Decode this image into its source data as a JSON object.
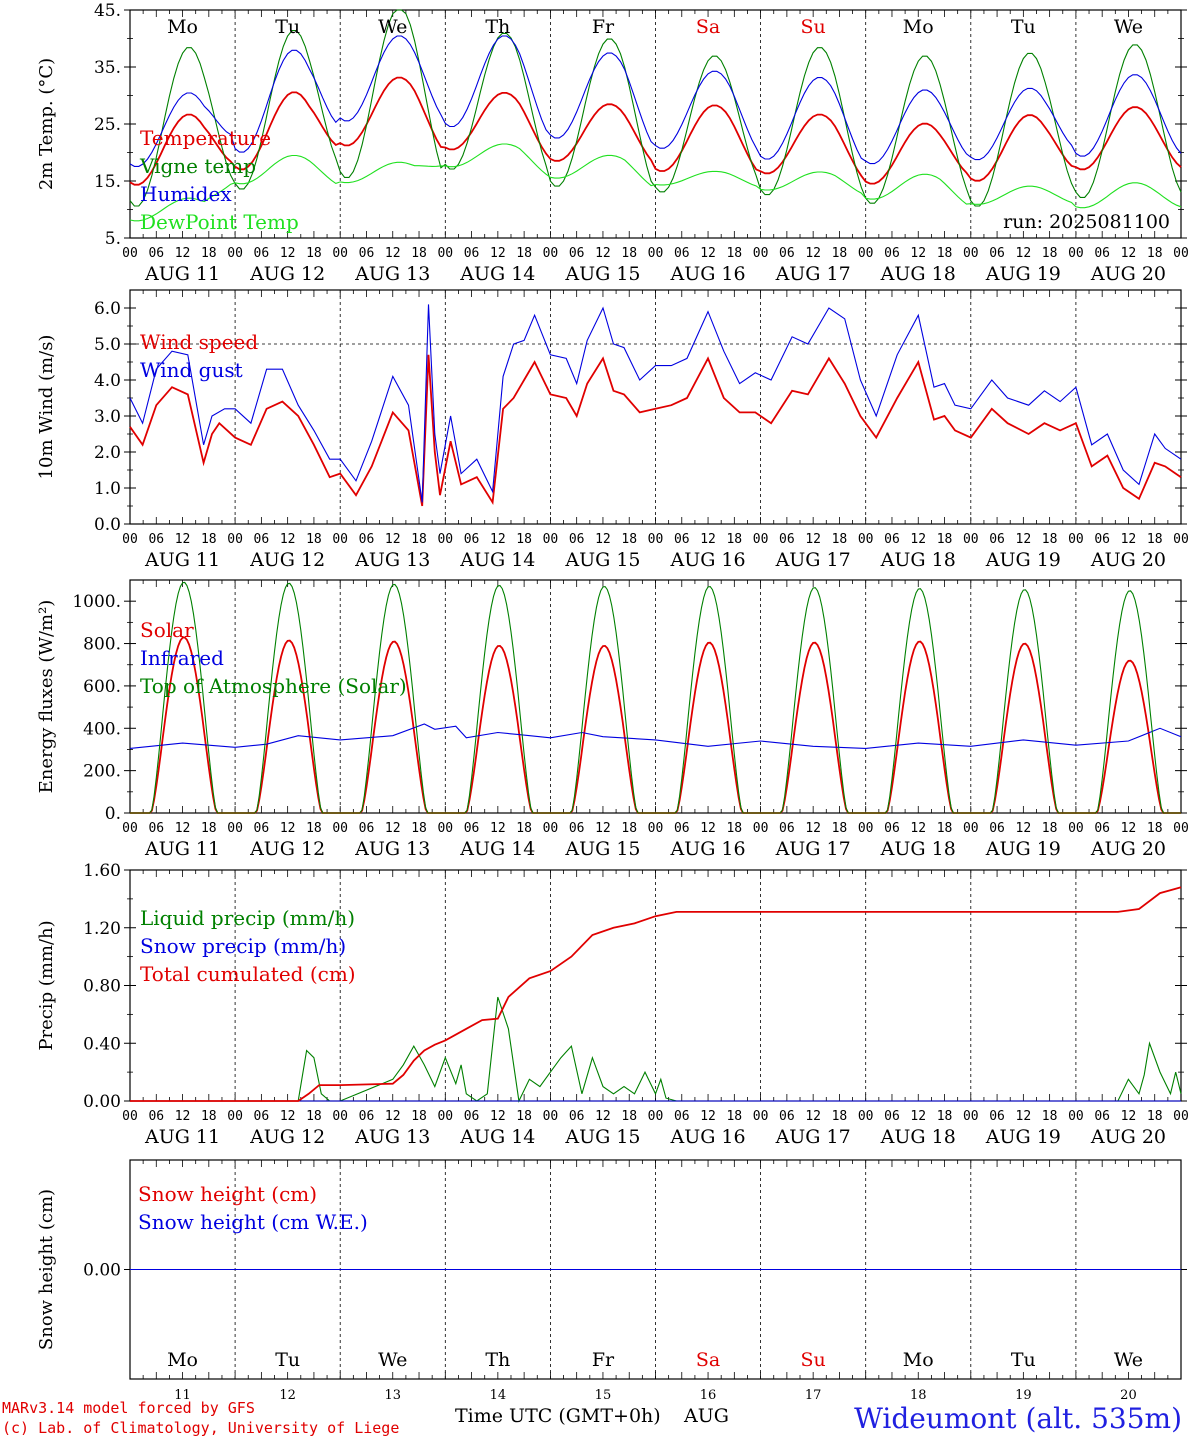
{
  "days": [
    {
      "dow": "Mo",
      "date": "AUG 11",
      "num": "11",
      "weekend": false
    },
    {
      "dow": "Tu",
      "date": "AUG 12",
      "num": "12",
      "weekend": false
    },
    {
      "dow": "We",
      "date": "AUG 13",
      "num": "13",
      "weekend": false
    },
    {
      "dow": "Th",
      "date": "AUG 14",
      "num": "14",
      "weekend": false
    },
    {
      "dow": "Fr",
      "date": "AUG 15",
      "num": "15",
      "weekend": false
    },
    {
      "dow": "Sa",
      "date": "AUG 16",
      "num": "16",
      "weekend": true
    },
    {
      "dow": "Su",
      "date": "AUG 17",
      "num": "17",
      "weekend": true
    },
    {
      "dow": "Mo",
      "date": "AUG 18",
      "num": "18",
      "weekend": false
    },
    {
      "dow": "Tu",
      "date": "AUG 19",
      "num": "19",
      "weekend": false
    },
    {
      "dow": "We",
      "date": "AUG 20",
      "num": "20",
      "weekend": false
    }
  ],
  "hour_labels": [
    "00",
    "06",
    "12",
    "18"
  ],
  "run_label": "run: 2025081100",
  "footer": {
    "model": "MARv3.14 model forced by GFS",
    "lab": "(c) Lab. of Climatology, University of Liege",
    "xlabel": "Time UTC (GMT+0h)",
    "month": "AUG",
    "station": "Wideumont (alt. 535m)"
  },
  "colors": {
    "red": "#e00000",
    "green": "#008000",
    "blue": "#0000e0",
    "lightgreen": "#20e020",
    "weekend": "#e00000",
    "station": "#2020e0"
  },
  "chart_data": [
    {
      "type": "line",
      "id": "temp",
      "ylabel": "2m Temp. (°C)",
      "ylim": [
        5,
        45
      ],
      "yticks": [
        5,
        15,
        25,
        35,
        45
      ],
      "ytick_labels": [
        "5.",
        "15.",
        "25.",
        "35.",
        "45."
      ],
      "x_unit": "days since AUG 11 00 UTC",
      "grid": "vertical dotted at day boundaries",
      "legend_position": "left",
      "series": [
        {
          "name": "Temperature",
          "color": "red",
          "mean": [
            20.5,
            23.8,
            27.2,
            25.5,
            23.5,
            22.5,
            21.5,
            19.8,
            20.8,
            22.5
          ],
          "amp": [
            6.2,
            6.8,
            6.0,
            5.0,
            5.0,
            5.8,
            5.2,
            5.3,
            5.8,
            5.5
          ]
        },
        {
          "name": "Vigne temp",
          "color": "green",
          "mean": [
            24.5,
            27.5,
            30.5,
            29.0,
            27.0,
            25.0,
            25.5,
            24.0,
            24.0,
            25.5
          ],
          "amp": [
            14.0,
            14.0,
            15.0,
            12.0,
            13.0,
            12.0,
            13.0,
            13.0,
            13.5,
            13.5
          ]
        },
        {
          "name": "Humidex",
          "color": "blue",
          "mean": [
            24.0,
            29.0,
            33.0,
            32.5,
            30.0,
            27.5,
            26.0,
            24.5,
            25.0,
            26.5
          ],
          "amp": [
            6.5,
            9.0,
            7.5,
            8.0,
            7.5,
            6.8,
            7.2,
            6.5,
            6.3,
            7.2
          ]
        },
        {
          "name": "DewPoint Temp",
          "color": "lightgreen",
          "mean": [
            10.0,
            17.0,
            16.5,
            19.5,
            17.5,
            15.5,
            15.0,
            14.0,
            12.5,
            12.5
          ],
          "amp": [
            2.0,
            2.5,
            1.8,
            2.0,
            2.0,
            1.2,
            1.6,
            2.2,
            1.6,
            2.2
          ]
        }
      ]
    },
    {
      "type": "line",
      "id": "wind",
      "ylabel": "10m Wind (m/s)",
      "ylim": [
        0,
        6.5
      ],
      "yticks": [
        0,
        1,
        2,
        3,
        4,
        5,
        6
      ],
      "ytick_labels": [
        "0.0",
        "1.0",
        "2.0",
        "3.0",
        "4.0",
        "5.0",
        "6.0"
      ],
      "reference_line": 5.0,
      "x_unit": "days since AUG 11 00 UTC",
      "legend_position": "left",
      "series": [
        {
          "name": "Wind speed",
          "color": "red",
          "x": [
            0,
            0.12,
            0.25,
            0.4,
            0.55,
            0.7,
            0.78,
            0.85,
            1.0,
            1.15,
            1.3,
            1.45,
            1.6,
            1.75,
            1.9,
            2.0,
            2.15,
            2.3,
            2.5,
            2.65,
            2.78,
            2.84,
            2.9,
            2.95,
            3.05,
            3.15,
            3.3,
            3.45,
            3.55,
            3.65,
            3.75,
            3.85,
            4.0,
            4.15,
            4.25,
            4.35,
            4.5,
            4.6,
            4.7,
            4.85,
            5.0,
            5.15,
            5.3,
            5.5,
            5.65,
            5.8,
            5.95,
            6.1,
            6.3,
            6.45,
            6.65,
            6.8,
            6.95,
            7.1,
            7.3,
            7.5,
            7.65,
            7.75,
            7.85,
            8.0,
            8.2,
            8.35,
            8.55,
            8.7,
            8.85,
            9.0,
            9.15,
            9.3,
            9.45,
            9.6,
            9.75,
            9.85,
            9.95,
            10.0
          ],
          "values": [
            2.7,
            2.2,
            3.3,
            3.8,
            3.6,
            1.7,
            2.5,
            2.8,
            2.4,
            2.2,
            3.2,
            3.4,
            3.0,
            2.2,
            1.3,
            1.4,
            0.8,
            1.6,
            3.1,
            2.6,
            0.5,
            4.7,
            2.0,
            0.8,
            2.3,
            1.1,
            1.3,
            0.6,
            3.2,
            3.5,
            4.0,
            4.5,
            3.6,
            3.5,
            3.0,
            3.9,
            4.6,
            3.7,
            3.6,
            3.1,
            3.2,
            3.3,
            3.5,
            4.6,
            3.5,
            3.1,
            3.1,
            2.8,
            3.7,
            3.6,
            4.6,
            3.9,
            3.0,
            2.4,
            3.5,
            4.5,
            2.9,
            3.0,
            2.6,
            2.4,
            3.2,
            2.8,
            2.5,
            2.8,
            2.6,
            2.8,
            1.6,
            1.9,
            1.0,
            0.7,
            1.7,
            1.6,
            1.4,
            1.3
          ]
        },
        {
          "name": "Wind gust",
          "color": "blue",
          "x": [
            0,
            0.12,
            0.25,
            0.4,
            0.55,
            0.7,
            0.78,
            0.9,
            1.0,
            1.15,
            1.3,
            1.45,
            1.6,
            1.75,
            1.9,
            2.0,
            2.15,
            2.3,
            2.5,
            2.65,
            2.78,
            2.84,
            2.9,
            2.95,
            3.05,
            3.15,
            3.3,
            3.45,
            3.55,
            3.65,
            3.75,
            3.85,
            4.0,
            4.15,
            4.25,
            4.35,
            4.5,
            4.6,
            4.7,
            4.85,
            5.0,
            5.15,
            5.3,
            5.5,
            5.65,
            5.8,
            5.95,
            6.1,
            6.3,
            6.45,
            6.65,
            6.8,
            6.95,
            7.1,
            7.3,
            7.5,
            7.65,
            7.75,
            7.85,
            8.0,
            8.2,
            8.35,
            8.55,
            8.7,
            8.85,
            9.0,
            9.15,
            9.3,
            9.45,
            9.6,
            9.75,
            9.85,
            9.95,
            10.0
          ],
          "values": [
            3.5,
            2.8,
            4.3,
            4.8,
            4.7,
            2.2,
            3.0,
            3.2,
            3.2,
            2.8,
            4.3,
            4.3,
            3.3,
            2.6,
            1.8,
            1.8,
            1.2,
            2.3,
            4.1,
            3.3,
            0.6,
            6.1,
            2.5,
            1.4,
            3.0,
            1.4,
            1.8,
            0.9,
            4.1,
            5.0,
            5.1,
            5.8,
            4.7,
            4.6,
            3.9,
            5.1,
            6.0,
            5.0,
            4.9,
            4.0,
            4.4,
            4.4,
            4.6,
            5.9,
            4.8,
            3.9,
            4.2,
            4.0,
            5.2,
            5.0,
            6.0,
            5.7,
            4.0,
            3.0,
            4.7,
            5.8,
            3.8,
            3.9,
            3.3,
            3.2,
            4.0,
            3.5,
            3.3,
            3.7,
            3.4,
            3.8,
            2.2,
            2.5,
            1.5,
            1.1,
            2.5,
            2.1,
            1.9,
            1.8
          ]
        }
      ]
    },
    {
      "type": "line",
      "id": "energy",
      "ylabel": "Energy fluxes (W/m²)",
      "ylim": [
        0,
        1100
      ],
      "yticks": [
        0,
        200,
        400,
        600,
        800,
        1000
      ],
      "ytick_labels": [
        "0.",
        "200.",
        "400.",
        "600.",
        "800.",
        "1000."
      ],
      "x_unit": "days since AUG 11 00 UTC",
      "legend_position": "left",
      "series": [
        {
          "name": "Solar",
          "color": "red",
          "peak": [
            830,
            815,
            810,
            790,
            790,
            805,
            805,
            810,
            800,
            720
          ]
        },
        {
          "name": "Infrared",
          "color": "blue",
          "x": [
            0,
            0.5,
            1.0,
            1.3,
            1.6,
            2.0,
            2.5,
            2.8,
            2.9,
            3.1,
            3.2,
            3.5,
            3.7,
            4.0,
            4.3,
            4.5,
            5.0,
            5.5,
            6.0,
            6.5,
            7.0,
            7.5,
            8.0,
            8.5,
            9.0,
            9.5,
            9.8,
            10.0
          ],
          "values": [
            305,
            330,
            310,
            325,
            365,
            345,
            365,
            420,
            395,
            410,
            355,
            380,
            370,
            355,
            380,
            360,
            345,
            315,
            340,
            315,
            305,
            330,
            315,
            345,
            320,
            340,
            400,
            360
          ]
        },
        {
          "name": "Top of Atmosphere (Solar)",
          "color": "green",
          "peak": [
            1090,
            1085,
            1080,
            1075,
            1070,
            1070,
            1065,
            1060,
            1055,
            1050
          ]
        }
      ]
    },
    {
      "type": "line",
      "id": "precip",
      "ylabel": "Precip (mm/h)",
      "ylim": [
        0,
        1.6
      ],
      "yticks": [
        0,
        0.4,
        0.8,
        1.2,
        1.6
      ],
      "ytick_labels": [
        "0.00",
        "0.40",
        "0.80",
        "1.20",
        "1.60"
      ],
      "x_unit": "days since AUG 11 00 UTC",
      "legend_position": "left",
      "series": [
        {
          "name": "Liquid precip (mm/h)",
          "color": "green",
          "x": [
            0,
            1.6,
            1.68,
            1.75,
            1.82,
            1.9,
            2.0,
            2.5,
            2.6,
            2.7,
            2.8,
            2.9,
            3.0,
            3.1,
            3.15,
            3.2,
            3.3,
            3.4,
            3.5,
            3.6,
            3.7,
            3.8,
            3.9,
            4.0,
            4.1,
            4.2,
            4.3,
            4.4,
            4.5,
            4.6,
            4.7,
            4.8,
            4.9,
            5.0,
            5.05,
            5.1,
            5.2,
            9.4,
            9.5,
            9.6,
            9.65,
            9.7,
            9.8,
            9.9,
            9.95,
            10.0
          ],
          "values": [
            0,
            0,
            0.35,
            0.3,
            0.05,
            0,
            0,
            0.15,
            0.25,
            0.38,
            0.25,
            0.1,
            0.3,
            0.12,
            0.25,
            0.05,
            0,
            0.05,
            0.72,
            0.5,
            0,
            0.15,
            0.1,
            0.2,
            0.3,
            0.38,
            0.05,
            0.3,
            0.1,
            0.05,
            0.1,
            0.05,
            0.2,
            0.05,
            0.15,
            0.02,
            0,
            0,
            0.15,
            0.05,
            0.18,
            0.4,
            0.2,
            0.05,
            0.2,
            0.05
          ]
        },
        {
          "name": "Snow precip (mm/h)",
          "color": "blue",
          "x": [
            0,
            10
          ],
          "values": [
            0,
            0
          ]
        },
        {
          "name": "Total cumulated (cm)",
          "color": "red",
          "x": [
            0,
            1.6,
            1.7,
            1.8,
            2.0,
            2.5,
            2.6,
            2.7,
            2.8,
            2.9,
            3.0,
            3.2,
            3.35,
            3.5,
            3.6,
            3.8,
            4.0,
            4.2,
            4.4,
            4.6,
            4.8,
            5.0,
            5.2,
            9.4,
            9.6,
            9.8,
            10.0
          ],
          "values": [
            0,
            0,
            0.05,
            0.11,
            0.11,
            0.12,
            0.18,
            0.28,
            0.35,
            0.39,
            0.42,
            0.5,
            0.56,
            0.57,
            0.72,
            0.85,
            0.9,
            1.0,
            1.15,
            1.2,
            1.23,
            1.28,
            1.31,
            1.31,
            1.33,
            1.44,
            1.48
          ]
        }
      ]
    },
    {
      "type": "line",
      "id": "snow",
      "ylabel": "Snow height (cm)",
      "ylim": [
        -1,
        1
      ],
      "yticks": [
        0
      ],
      "ytick_labels": [
        "0.00"
      ],
      "x_unit": "days since AUG 11 00 UTC",
      "legend_position": "left",
      "series": [
        {
          "name": "Snow height (cm)",
          "color": "red",
          "x": [
            0,
            10
          ],
          "values": [
            0,
            0
          ]
        },
        {
          "name": "Snow height (cm W.E.)",
          "color": "blue",
          "x": [
            0,
            10
          ],
          "values": [
            0,
            0
          ]
        }
      ]
    }
  ]
}
